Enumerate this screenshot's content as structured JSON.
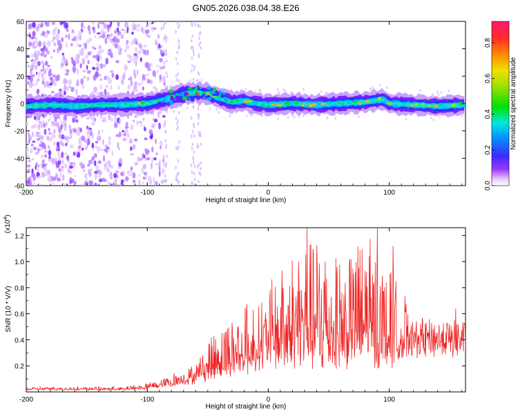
{
  "title": "GN05.2026.038.04.38.E26",
  "colors": {
    "snr_line": "#ee2222",
    "axis": "#000000",
    "background": "#ffffff"
  },
  "chart_data": [
    {
      "type": "heatmap",
      "name": "spectrogram",
      "xlabel": "Height of straight line (km)",
      "ylabel": "Frequency (Hz)",
      "xlim": [
        -200,
        163
      ],
      "ylim": [
        -60,
        60
      ],
      "x_ticks": [
        -200,
        -100,
        0,
        100
      ],
      "y_ticks": [
        -60,
        -40,
        -20,
        0,
        20,
        40,
        60
      ],
      "x_tick_labels": [
        "-200",
        "-100",
        "0",
        "100"
      ],
      "y_tick_labels": [
        "-60",
        "-40",
        "-20",
        "0",
        "20",
        "40",
        "60"
      ],
      "ridge": [
        {
          "x": -200,
          "y": -2
        },
        {
          "x": -180,
          "y": -1
        },
        {
          "x": -160,
          "y": -2
        },
        {
          "x": -140,
          "y": -1
        },
        {
          "x": -120,
          "y": -1
        },
        {
          "x": -100,
          "y": 0
        },
        {
          "x": -90,
          "y": 2
        },
        {
          "x": -80,
          "y": 4
        },
        {
          "x": -70,
          "y": 7
        },
        {
          "x": -60,
          "y": 8
        },
        {
          "x": -50,
          "y": 7
        },
        {
          "x": -40,
          "y": 4
        },
        {
          "x": -30,
          "y": 1
        },
        {
          "x": -20,
          "y": 2
        },
        {
          "x": -10,
          "y": 0
        },
        {
          "x": 0,
          "y": -1
        },
        {
          "x": 20,
          "y": 0
        },
        {
          "x": 40,
          "y": -1
        },
        {
          "x": 60,
          "y": 0
        },
        {
          "x": 80,
          "y": 1
        },
        {
          "x": 95,
          "y": 3
        },
        {
          "x": 100,
          "y": 0
        },
        {
          "x": 120,
          "y": -1
        },
        {
          "x": 140,
          "y": -2
        },
        {
          "x": 163,
          "y": -1
        }
      ],
      "noise_region_x": [
        -200,
        -95
      ]
    },
    {
      "type": "colorbar",
      "label": "Normalized spectral amplitude",
      "range": [
        0.0,
        0.92
      ],
      "ticks": [
        0.0,
        0.2,
        0.4,
        0.6,
        0.8
      ],
      "tick_labels": [
        "0.0",
        "0.2",
        "0.4",
        "0.6",
        "0.8"
      ]
    },
    {
      "type": "line",
      "name": "snr",
      "xlabel": "Height of straight line (km)",
      "ylabel": "SNR (10 * V/V)",
      "scale_label": "(x10",
      "scale_exponent": "4",
      "scale_suffix": ")",
      "xlim": [
        -200,
        163
      ],
      "ylim": [
        0,
        1.26
      ],
      "x_ticks": [
        -200,
        -100,
        0,
        100
      ],
      "x_tick_labels": [
        "-200",
        "-100",
        "0",
        "100"
      ],
      "y_ticks": [
        0.2,
        0.4,
        0.6,
        0.8,
        1.0,
        1.2
      ],
      "y_tick_labels": [
        "0.2",
        "0.4",
        "0.6",
        "0.8",
        "1.0",
        "1.2"
      ],
      "envelope": [
        {
          "x": -200,
          "base": 0.02,
          "amp": 0.02
        },
        {
          "x": -120,
          "base": 0.02,
          "amp": 0.02
        },
        {
          "x": -100,
          "base": 0.03,
          "amp": 0.04
        },
        {
          "x": -80,
          "base": 0.06,
          "amp": 0.08
        },
        {
          "x": -60,
          "base": 0.1,
          "amp": 0.14
        },
        {
          "x": -40,
          "base": 0.18,
          "amp": 0.4
        },
        {
          "x": -20,
          "base": 0.22,
          "amp": 0.45
        },
        {
          "x": 0,
          "base": 0.28,
          "amp": 0.55
        },
        {
          "x": 20,
          "base": 0.32,
          "amp": 0.8
        },
        {
          "x": 40,
          "base": 0.3,
          "amp": 0.95
        },
        {
          "x": 60,
          "base": 0.3,
          "amp": 0.8
        },
        {
          "x": 80,
          "base": 0.3,
          "amp": 0.95
        },
        {
          "x": 100,
          "base": 0.3,
          "amp": 0.7
        },
        {
          "x": 112,
          "base": 0.3,
          "amp": 0.6
        },
        {
          "x": 116,
          "base": 0.46,
          "amp": 0.05
        },
        {
          "x": 163,
          "base": 0.46,
          "amp": 0.06
        }
      ],
      "peaks": [
        {
          "x": 32,
          "y": 1.26
        },
        {
          "x": 90,
          "y": 1.26
        },
        {
          "x": 103,
          "y": 1.12
        },
        {
          "x": 25,
          "y": 1.0
        },
        {
          "x": 47,
          "y": 1.0
        },
        {
          "x": 57,
          "y": 0.96
        },
        {
          "x": 72,
          "y": 0.92
        },
        {
          "x": 80,
          "y": 0.93
        },
        {
          "x": 12,
          "y": 0.8
        },
        {
          "x": -18,
          "y": 0.62
        },
        {
          "x": -35,
          "y": 0.46
        },
        {
          "x": 155,
          "y": 0.64
        }
      ]
    }
  ]
}
